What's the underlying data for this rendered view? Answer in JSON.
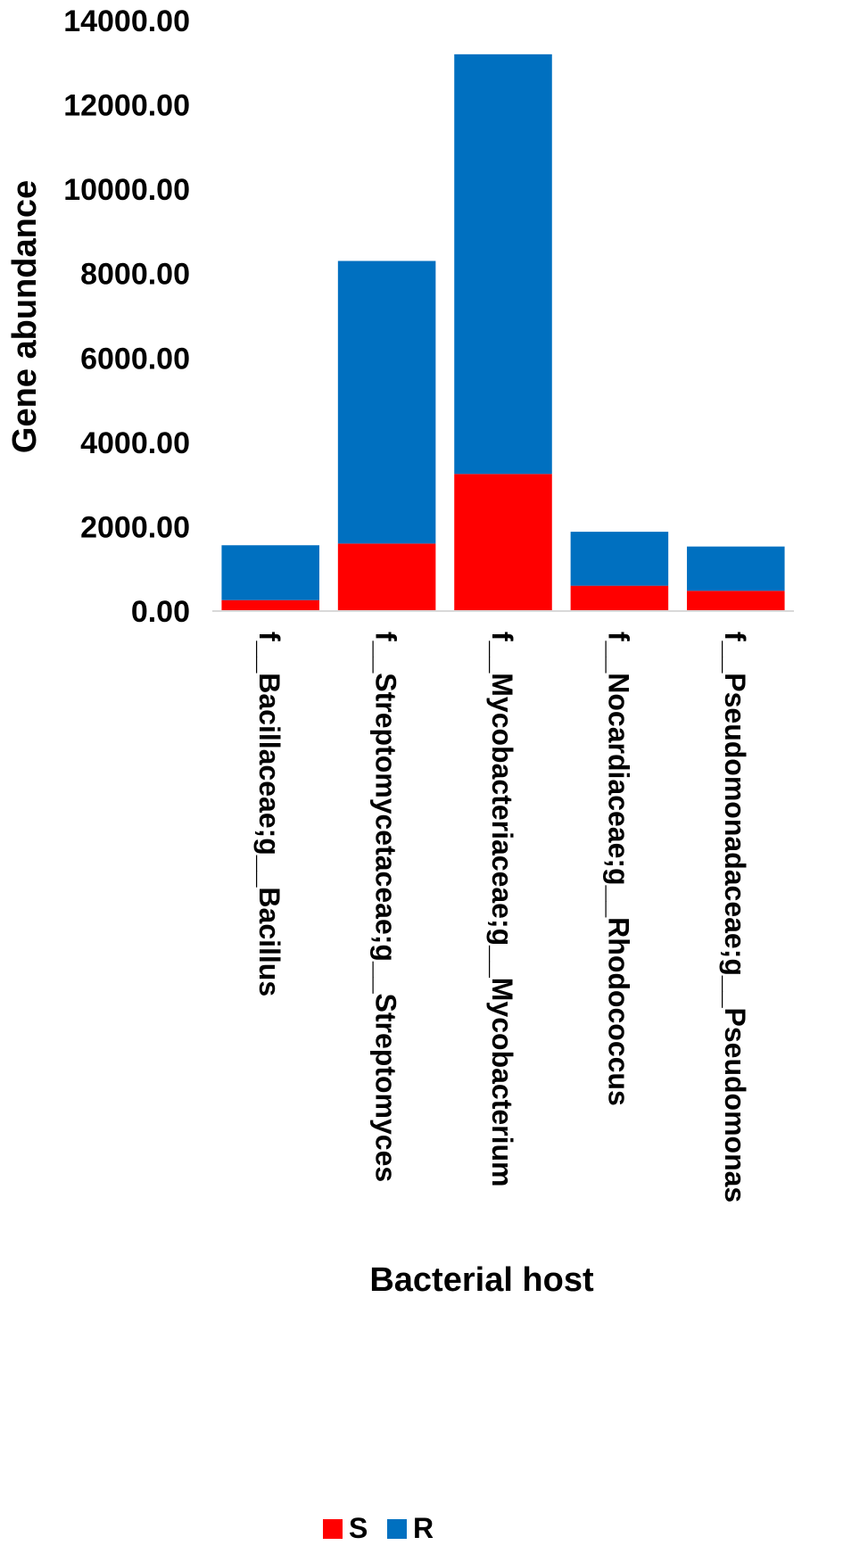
{
  "chart_data": {
    "type": "bar",
    "stacked": true,
    "xlabel": "Bacterial host",
    "ylabel": "Gene abundance",
    "ylim": [
      0,
      14000
    ],
    "yticks": [
      "0.00",
      "2000.00",
      "4000.00",
      "6000.00",
      "8000.00",
      "10000.00",
      "12000.00",
      "14000.00"
    ],
    "categories": [
      "f__Bacillaceae;g__Bacillus",
      "f__Streptomycetaceae;g__Streptomyces",
      "f__Mycobacteriaceae;g__Mycobacterium",
      "f__Nocardiaceae;g__Rhodococcus",
      "f__Pseudomonadaceae;g__Pseudomonas"
    ],
    "series": [
      {
        "name": "S",
        "color": "#ff0000",
        "values": [
          260,
          1600,
          3250,
          600,
          480
        ]
      },
      {
        "name": "R",
        "color": "#0070c0",
        "values": [
          1300,
          6700,
          9950,
          1280,
          1050
        ]
      }
    ],
    "legend_position": "bottom",
    "grid": false
  }
}
